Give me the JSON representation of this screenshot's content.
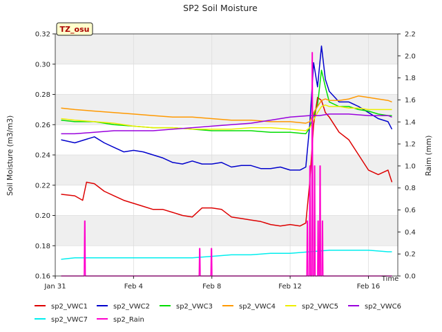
{
  "chart_data": {
    "type": "line",
    "title": "SP2 Soil Moisture",
    "xlabel": "Time",
    "ylabel": "Soil Moisture (m3/m3)",
    "y2label": "Raim (mm)",
    "annotation": "TZ_osu",
    "x_unit": "days since Jan 31",
    "xlim": [
      0,
      17.5
    ],
    "ylim": [
      0.16,
      0.32
    ],
    "y2lim": [
      0.0,
      2.2
    ],
    "xticks": [
      {
        "x": 0,
        "label": "Jan 31"
      },
      {
        "x": 4,
        "label": "Feb 4"
      },
      {
        "x": 8,
        "label": "Feb 8"
      },
      {
        "x": 12,
        "label": "Feb 12"
      },
      {
        "x": 16,
        "label": "Feb 16"
      }
    ],
    "yticks": [
      0.16,
      0.18,
      0.2,
      0.22,
      0.24,
      0.26,
      0.28,
      0.3,
      0.32
    ],
    "y2ticks": [
      0.0,
      0.2,
      0.4,
      0.6,
      0.8,
      1.0,
      1.2,
      1.4,
      1.6,
      1.8,
      2.0,
      2.2
    ],
    "grid": true,
    "legend_position": "bottom",
    "series": [
      {
        "name": "sp2_VWC1",
        "color": "#dd0000",
        "axis": "left",
        "x": [
          0.3,
          1.0,
          1.4,
          1.6,
          2.0,
          2.5,
          3.0,
          3.5,
          4.0,
          4.5,
          5.0,
          5.5,
          6.0,
          6.5,
          7.0,
          7.5,
          8.0,
          8.5,
          9.0,
          9.5,
          10.0,
          10.5,
          11.0,
          11.5,
          12.0,
          12.5,
          12.8,
          13.0,
          13.2,
          13.4,
          13.6,
          13.8,
          14.0,
          14.5,
          15.0,
          15.5,
          16.0,
          16.5,
          17.0,
          17.2
        ],
        "y": [
          0.214,
          0.213,
          0.21,
          0.222,
          0.221,
          0.216,
          0.213,
          0.21,
          0.208,
          0.206,
          0.204,
          0.204,
          0.202,
          0.2,
          0.199,
          0.205,
          0.205,
          0.204,
          0.199,
          0.198,
          0.197,
          0.196,
          0.194,
          0.193,
          0.194,
          0.193,
          0.195,
          0.222,
          0.26,
          0.278,
          0.276,
          0.268,
          0.265,
          0.255,
          0.25,
          0.24,
          0.23,
          0.227,
          0.23,
          0.222
        ]
      },
      {
        "name": "sp2_VWC2",
        "color": "#0000cc",
        "axis": "left",
        "x": [
          0.3,
          1.0,
          1.5,
          2.0,
          2.5,
          3.0,
          3.5,
          4.0,
          4.5,
          5.0,
          5.5,
          6.0,
          6.5,
          7.0,
          7.5,
          8.0,
          8.5,
          9.0,
          9.5,
          10.0,
          10.5,
          11.0,
          11.5,
          12.0,
          12.5,
          12.8,
          13.0,
          13.2,
          13.4,
          13.6,
          13.8,
          14.0,
          14.5,
          15.0,
          15.5,
          16.0,
          16.5,
          17.0,
          17.2
        ],
        "y": [
          0.25,
          0.248,
          0.25,
          0.252,
          0.248,
          0.245,
          0.242,
          0.243,
          0.242,
          0.24,
          0.238,
          0.235,
          0.234,
          0.236,
          0.234,
          0.234,
          0.235,
          0.232,
          0.233,
          0.233,
          0.231,
          0.231,
          0.232,
          0.23,
          0.23,
          0.232,
          0.26,
          0.301,
          0.285,
          0.312,
          0.29,
          0.282,
          0.275,
          0.275,
          0.272,
          0.268,
          0.264,
          0.262,
          0.257
        ]
      },
      {
        "name": "sp2_VWC3",
        "color": "#00dd00",
        "axis": "left",
        "x": [
          0.3,
          1.0,
          2.0,
          3.0,
          4.0,
          5.0,
          6.0,
          7.0,
          8.0,
          9.0,
          10.0,
          11.0,
          12.0,
          12.8,
          13.0,
          13.2,
          13.4,
          13.6,
          13.8,
          14.0,
          14.5,
          15.0,
          15.5,
          16.0,
          16.5,
          17.0,
          17.2
        ],
        "y": [
          0.263,
          0.262,
          0.262,
          0.26,
          0.259,
          0.258,
          0.258,
          0.257,
          0.256,
          0.256,
          0.256,
          0.255,
          0.255,
          0.254,
          0.258,
          0.266,
          0.273,
          0.296,
          0.285,
          0.275,
          0.272,
          0.272,
          0.27,
          0.269,
          0.267,
          0.266,
          0.266
        ]
      },
      {
        "name": "sp2_VWC4",
        "color": "#ff9900",
        "axis": "left",
        "x": [
          0.3,
          1.0,
          2.0,
          3.0,
          4.0,
          5.0,
          6.0,
          7.0,
          8.0,
          9.0,
          10.0,
          11.0,
          12.0,
          12.8,
          13.0,
          13.2,
          13.4,
          13.6,
          13.8,
          14.0,
          14.5,
          15.0,
          15.5,
          16.0,
          16.5,
          17.0,
          17.2
        ],
        "y": [
          0.271,
          0.27,
          0.269,
          0.268,
          0.267,
          0.266,
          0.265,
          0.265,
          0.264,
          0.263,
          0.263,
          0.262,
          0.262,
          0.261,
          0.262,
          0.268,
          0.272,
          0.276,
          0.277,
          0.276,
          0.276,
          0.277,
          0.279,
          0.278,
          0.277,
          0.276,
          0.275
        ]
      },
      {
        "name": "sp2_VWC5",
        "color": "#eeee00",
        "axis": "left",
        "x": [
          0.3,
          1.0,
          2.0,
          3.0,
          4.0,
          5.0,
          6.0,
          7.0,
          8.0,
          9.0,
          10.0,
          11.0,
          12.0,
          12.8,
          13.0,
          13.2,
          13.4,
          13.6,
          13.8,
          14.0,
          14.5,
          15.0,
          15.5,
          16.0,
          16.5,
          17.0,
          17.2
        ],
        "y": [
          0.264,
          0.263,
          0.262,
          0.261,
          0.259,
          0.258,
          0.258,
          0.257,
          0.257,
          0.257,
          0.258,
          0.258,
          0.257,
          0.256,
          0.258,
          0.263,
          0.268,
          0.272,
          0.273,
          0.272,
          0.272,
          0.271,
          0.271,
          0.27,
          0.27,
          0.27,
          0.27
        ]
      },
      {
        "name": "sp2_VWC6",
        "color": "#9900dd",
        "axis": "left",
        "x": [
          0.3,
          1.0,
          2.0,
          3.0,
          4.0,
          5.0,
          6.0,
          7.0,
          8.0,
          9.0,
          10.0,
          11.0,
          12.0,
          13.0,
          13.5,
          14.0,
          15.0,
          16.0,
          17.0,
          17.2
        ],
        "y": [
          0.254,
          0.254,
          0.255,
          0.256,
          0.256,
          0.256,
          0.257,
          0.258,
          0.259,
          0.26,
          0.261,
          0.263,
          0.265,
          0.266,
          0.266,
          0.267,
          0.267,
          0.266,
          0.266,
          0.265
        ]
      },
      {
        "name": "sp2_VWC7",
        "color": "#00eeee",
        "axis": "left",
        "x": [
          0.3,
          1.0,
          2.0,
          3.0,
          4.0,
          5.0,
          6.0,
          7.0,
          8.0,
          9.0,
          10.0,
          11.0,
          12.0,
          13.0,
          14.0,
          15.0,
          16.0,
          17.0,
          17.2
        ],
        "y": [
          0.171,
          0.172,
          0.172,
          0.172,
          0.172,
          0.172,
          0.172,
          0.172,
          0.173,
          0.174,
          0.174,
          0.175,
          0.175,
          0.176,
          0.177,
          0.177,
          0.177,
          0.176,
          0.176
        ]
      },
      {
        "name": "sp2_Rain",
        "color": "#ff00cc",
        "axis": "right",
        "x": [
          0.3,
          1.48,
          1.5,
          1.52,
          1.54,
          1.56,
          7.35,
          7.37,
          7.39,
          7.41,
          7.43,
          7.95,
          7.97,
          7.99,
          8.01,
          8.03,
          12.85,
          12.87,
          12.89,
          12.91,
          12.93,
          12.98,
          13.0,
          13.02,
          13.04,
          13.06,
          13.1,
          13.12,
          13.14,
          13.16,
          13.18,
          13.22,
          13.24,
          13.26,
          13.28,
          13.3,
          13.4,
          13.42,
          13.44,
          13.46,
          13.48,
          13.5,
          13.52,
          13.54,
          13.56,
          13.58,
          13.62,
          13.64,
          13.66,
          13.68,
          13.7,
          17.2
        ],
        "y": [
          0,
          0,
          0.5,
          0.5,
          0,
          0,
          0,
          0.25,
          0.25,
          0,
          0,
          0,
          0.25,
          0.25,
          0,
          0,
          0,
          0.5,
          0.5,
          0,
          0,
          0,
          1.0,
          1.0,
          0,
          0,
          0,
          2.03,
          2.03,
          0,
          0,
          0,
          1.0,
          1.0,
          0,
          0,
          0,
          0.5,
          0.5,
          0,
          0,
          0,
          1.0,
          1.0,
          0,
          0,
          0,
          0.5,
          0.5,
          0,
          0,
          0
        ]
      }
    ]
  }
}
